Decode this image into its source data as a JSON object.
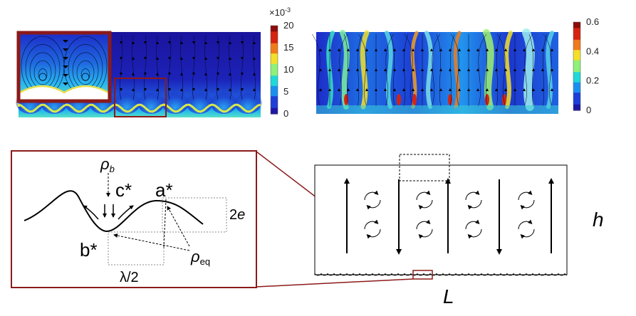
{
  "colorbar_left": {
    "multiplier": "×10",
    "multiplier_exp": "-3",
    "ticks": [
      "20",
      "15",
      "10",
      "5",
      "0"
    ],
    "range": [
      0,
      20
    ],
    "colormap": [
      "#1e16a5",
      "#1f3fd8",
      "#1b8ff0",
      "#20d8d8",
      "#8ff07a",
      "#f2e02a",
      "#f07b1a",
      "#d62410",
      "#8c0d0a"
    ]
  },
  "colorbar_right": {
    "ticks": [
      "0.6",
      "0.4",
      "0.2",
      "0"
    ],
    "range": [
      0,
      0.6
    ],
    "colormap": [
      "#1e16a5",
      "#1f3fd8",
      "#1b8ff0",
      "#20d8d8",
      "#8ff07a",
      "#f2e02a",
      "#f07b1a",
      "#d62410",
      "#8c0d0a"
    ]
  },
  "inset_labels": {
    "rho_b": "ρ",
    "rho_b_sub": "b",
    "c_star": "c*",
    "a_star": "a*",
    "b_star": "b*",
    "two_e": "2",
    "two_e_var": "e",
    "rho_eq": "ρ",
    "rho_eq_sub": "eq",
    "half_lambda": "λ/2"
  },
  "domain_labels": {
    "height": "h",
    "length": "L"
  },
  "colors": {
    "highlight_box": "#8b1a1a",
    "flow_low": "#1a1aa0",
    "flow_high": "#d62410"
  }
}
